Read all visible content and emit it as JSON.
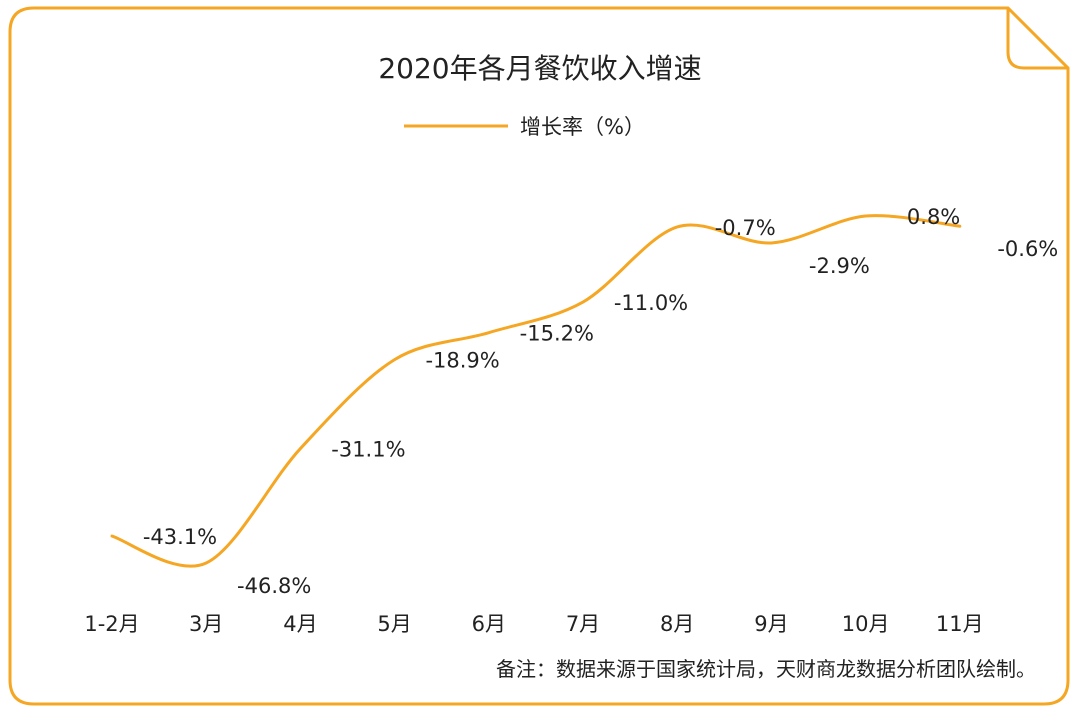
{
  "colors": {
    "frame": "#F5A623",
    "line": "#F5A623",
    "text": "#222222"
  },
  "chart_data": {
    "type": "line",
    "title": "2020年各月餐饮收入增速",
    "legend_label": "增长率（%）",
    "legend_position": "top-center",
    "categories": [
      "1-2月",
      "3月",
      "4月",
      "5月",
      "6月",
      "7月",
      "8月",
      "9月",
      "10月",
      "11月"
    ],
    "series": [
      {
        "name": "增长率（%）",
        "values": [
          -43.1,
          -46.8,
          -31.1,
          -18.9,
          -15.2,
          -11.0,
          -0.7,
          -2.9,
          0.8,
          -0.6
        ],
        "labels": [
          "-43.1%",
          "-46.8%",
          "-31.1%",
          "-18.9%",
          "-15.2%",
          "-11.0%",
          "-0.7%",
          "-2.9%",
          "0.8%",
          "-0.6%"
        ]
      }
    ],
    "xlabel": "",
    "ylabel": "",
    "ylim": [
      -50,
      2
    ],
    "grid": false,
    "smooth": true
  },
  "footnote": "备注：数据来源于国家统计局，天财商龙数据分析团队绘制。"
}
